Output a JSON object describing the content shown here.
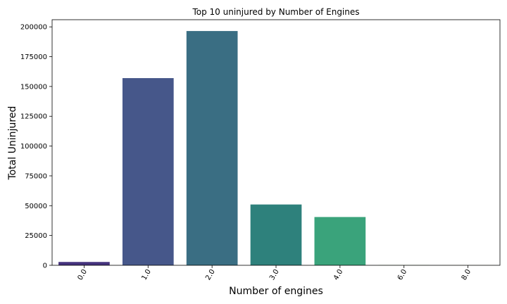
{
  "chart_data": {
    "type": "bar",
    "title": "Top 10  uninjured by Number of Engines",
    "xlabel": "Number of engines",
    "ylabel": "Total  Uninjured",
    "categories": [
      "0.0",
      "1.0",
      "2.0",
      "3.0",
      "4.0",
      "6.0",
      "8.0"
    ],
    "values": [
      2800,
      157000,
      196500,
      51000,
      40500,
      150,
      50
    ],
    "colors": [
      "#45337d",
      "#46578a",
      "#3a6e83",
      "#2e817c",
      "#3aa37b",
      "#6ccd5a",
      "#bade28"
    ],
    "ylim": [
      0,
      206000
    ],
    "yticks": [
      0,
      25000,
      50000,
      75000,
      100000,
      125000,
      150000,
      175000,
      200000
    ],
    "grid": false,
    "xtick_rotation": -60
  }
}
